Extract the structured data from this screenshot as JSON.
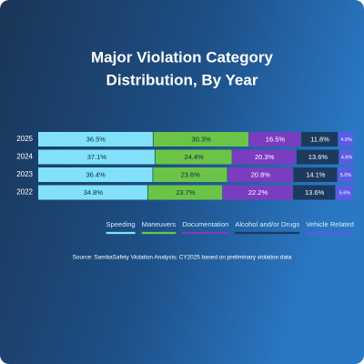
{
  "chart_data": {
    "type": "stacked_bar_horizontal",
    "title": [
      "Major Violation Category",
      "Distribution, By Year"
    ],
    "categories": [
      "2025",
      "2024",
      "2023",
      "2022"
    ],
    "xlim": [
      0,
      100
    ],
    "series": [
      {
        "name": "Speeding",
        "color": "#80e1f8",
        "values": [
          36.5,
          37.1,
          36.4,
          34.8
        ],
        "value_labels": [
          "36.5%",
          "37.1%",
          "36.4%",
          "34.8%"
        ]
      },
      {
        "name": "Maneuvers",
        "color": "#6cc447",
        "values": [
          30.3,
          24.4,
          23.6,
          23.7
        ],
        "value_labels": [
          "30.3%",
          "24.4%",
          "23.6%",
          "23.7%"
        ]
      },
      {
        "name": "Documentation",
        "color": "#7c3cc0",
        "values": [
          16.5,
          20.3,
          20.8,
          22.2
        ],
        "value_labels": [
          "16.5%",
          "20.3%",
          "20.8%",
          "22.2%"
        ]
      },
      {
        "name": "Alcohol and/or Drugs",
        "color": "#1b3a5e",
        "values": [
          11.8,
          13.6,
          14.1,
          13.6
        ],
        "value_labels": [
          "11.8%",
          "13.6%",
          "14.1%",
          "13.6%"
        ]
      },
      {
        "name": "Vehicle Related",
        "color": "#5b5be6",
        "values": [
          4.9,
          4.6,
          5.0,
          5.6
        ],
        "value_labels": [
          "4.9%",
          "4.6%",
          "5.0%",
          "5.6%"
        ]
      }
    ],
    "source": "Source: SambaSafety Violation Analysis; CY2025 based on preliminary violation data"
  }
}
